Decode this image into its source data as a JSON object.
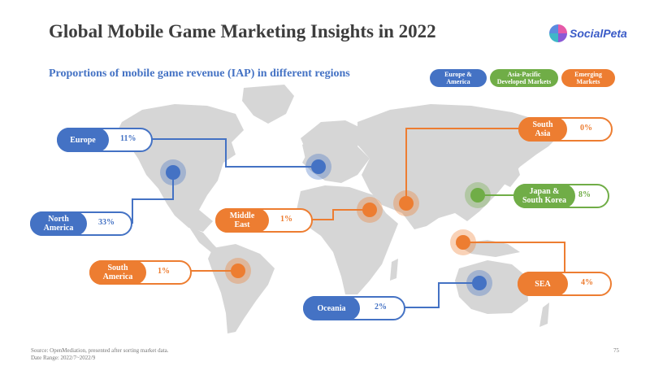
{
  "title": "Global Mobile Game Marketing Insights in 2022",
  "subtitle": "Proportions of mobile game revenue (IAP) in different regions",
  "logo": {
    "text": "SocialPeta"
  },
  "legend": [
    {
      "label": "Europe &\nAmerica",
      "color": "#4472c4"
    },
    {
      "label": "Asia-Pacific\nDeveloped Markets",
      "color": "#70ad47"
    },
    {
      "label": "Emerging\nMarkets",
      "color": "#ed7d31"
    }
  ],
  "regions": {
    "europe": {
      "name": "Europe",
      "value": "11%",
      "color": "#4472c4"
    },
    "north_america": {
      "name": "North\nAmerica",
      "value": "33%",
      "color": "#4472c4"
    },
    "oceania": {
      "name": "Oceania",
      "value": "2%",
      "color": "#4472c4"
    },
    "south_america": {
      "name": "South\nAmerica",
      "value": "1%",
      "color": "#ed7d31"
    },
    "middle_east": {
      "name": "Middle\nEast",
      "value": "1%",
      "color": "#ed7d31"
    },
    "south_asia": {
      "name": "South\nAsia",
      "value": "0%",
      "color": "#ed7d31"
    },
    "sea": {
      "name": "SEA",
      "value": "4%",
      "color": "#ed7d31"
    },
    "japan_korea": {
      "name": "Japan &\nSouth Korea",
      "value": "8%",
      "color": "#70ad47"
    }
  },
  "footer": {
    "source": "Source: OpenMediation, presented after sorting market data.",
    "date_range": "Date Range: 2022/7~2022/9"
  },
  "page_number": "75"
}
